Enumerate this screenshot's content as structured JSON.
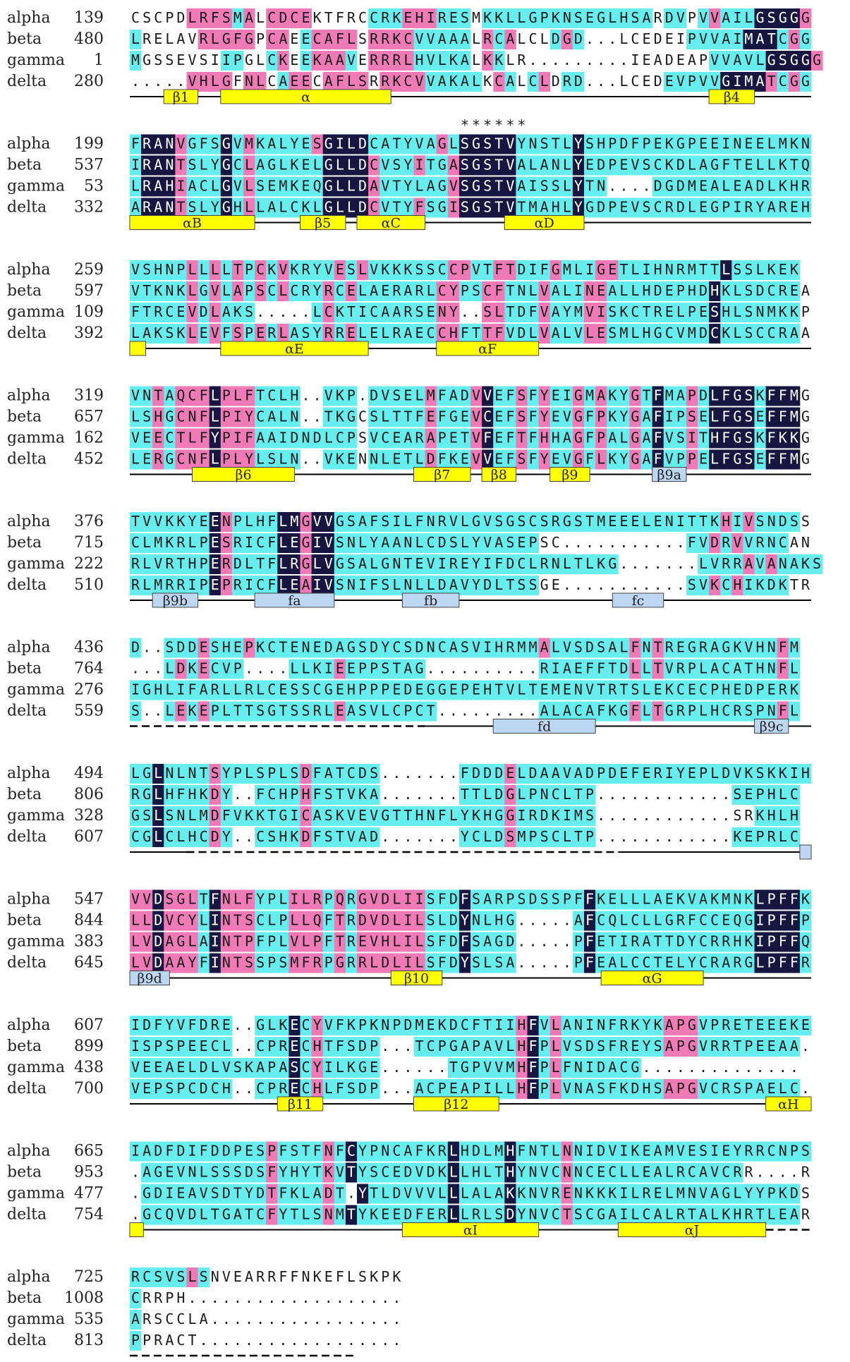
{
  "colors": {
    "dark": "#161640",
    "pink": "#f07ab5",
    "cyan": "#66eeee",
    "helix": "#ffff00",
    "strand": "#bdd6f2",
    "line": "#000000"
  },
  "sequence_names": [
    "alpha",
    "beta",
    "gamma",
    "delta"
  ],
  "blocks": [
    {
      "numbers": [
        "139",
        "480",
        "1",
        "280"
      ],
      "sequences": [
        "CSCPDLRFSMALCDCEKTFRCCRKEHIRESMKKLLGPKNSEGLHSARDVPVVAILGSGGG",
        "LRELAVRLGFGPCAEECAFLSRRKCVVAAALRCALCLDGD...LCEDEIPVVAIMATCGG",
        "MGSSEVSIIPGLCKEEKAAVERRRLHVLKALKKLR.........IEADEAPVVAVLGSGGG",
        ".....VHLGFNLCAEECAFLSRRKCVVAKALKCALCLDRD...LCEDEVPVVGIMATCGG"
      ],
      "masks": [
        "-----PPPPCP-PPPP-----CCCPPPCCC-CCCCCCCCCCCCCCC-CC-CPCCCDDDDPCPCCCC",
        "C-----PPPPP-PP-CPPPP-PPPPCCCCC-PCP---CPCCC-------CCCCCDDDCPCPCDDD",
        "C-------CC--CP-CPPPC-PPPPCCCCC-PC----C-------------CCCCCDDDDPCPCDDD",
        "-----PPPP-PP-CPP-PPPP-PPPPCCCCC-PC-CP-CC-------CCCCCDDDDPCPCCDDD"
      ],
      "markers": "",
      "features": [
        {
          "type": "coil",
          "start": 0,
          "end": 60
        },
        {
          "type": "helix",
          "start": 3,
          "end": 6,
          "label": "β1"
        },
        {
          "type": "helix",
          "start": 8,
          "end": 23,
          "label": "α"
        },
        {
          "type": "helix",
          "start": 51,
          "end": 55,
          "label": "β4"
        }
      ]
    },
    {
      "numbers": [
        "199",
        "537",
        "53",
        "332"
      ],
      "sequences": [
        "FRANVGFSGVMKALYESGILDCATYVAGLSGSTVYNSTLYSHPDFPEKGPEEINEELMKN",
        "IRANTSLYGCLAGLKELGLLDCVSYITGASGSTVALANLYEDPEVSCKDLAGFTELLKTQ",
        "LRAHIACLGVLSEMKEQGLLDAVTYLAGVSGSTVAISSLYTN....DGDMEALEADLKHR",
        "ARANTSLYGHLLALCKLGLLDCVTYFSGISGSTVTMAHLYGDPEVSCRDLEGPIRYAREH"
      ],
      "masks": [
        "CDDDPCCCDCPCCCCCPDDDDCCCCCCPCDDDDDCCCCCDCCCCCCCCCCCCCCCCCCCC",
        "CDDDPCCCDCPCCCCCCDDDDPCCCPCCPDDDDDCCCCCDCCCCCCCCCCCCCCCCCCCC",
        "CDDDPCCCDCPCCCCCCDDDDPCCCCCCPDDDDDCCCCCDCCCCCCCCCCCCCCCCCCCC",
        "CDDDPCCCDCPCCCCCCDDDDPCCCPCCPDDDDDCCCCCDCCCCCCCCCCCCCCCCCCCC"
      ],
      "markers": "                             ******",
      "features": [
        {
          "type": "coil",
          "start": 0,
          "end": 60
        },
        {
          "type": "helix",
          "start": 0,
          "end": 11,
          "label": "αB"
        },
        {
          "type": "helix",
          "start": 15,
          "end": 19,
          "label": "β5"
        },
        {
          "type": "helix",
          "start": 20,
          "end": 26,
          "label": "αC"
        },
        {
          "type": "helix",
          "start": 33,
          "end": 40,
          "label": "αD"
        }
      ]
    },
    {
      "numbers": [
        "259",
        "597",
        "109",
        "392"
      ],
      "sequences": [
        "VSHNPLLLLTPCKVKRYVESLVKKKSSCCPVTFTDIFGMLIGETLIHNRMTTLSSLKEK",
        "VTKNKLGVLAPSCLCRYRCELAERARLCYPSCFTNLVALINEALLHDEPHDHKLSDCREA",
        "FTRCEVDLAKS.....LCKTICAARSENY..SLTDFVAYMVISKCTRELPESHLSNMKKP",
        "LAKSKLEVFSPERLASYRRELELRAECCHFTTFVDLVALVLESMLHGCVMDCKLSCCRAA"
      ],
      "masks": [
        "CCCCCPCPCPCPCPCCCCPCPCCCCCCCPPCCPPCCCPCCCPPCCCCCCCCCDCCCCCC",
        "CCCCCPCPCPCPCPCCCPCPCCCCCCCPPCCPPCCCPCCCPPCCCCCCCCCDCCCCCCC",
        "CCCCCPCPCCCCCCCCCPCCCCCCCCCPPCCPPCCCPCCCPPCCCCCCCCCDCCCCCCC",
        "CCCCCPCPCPCPCPCCCPCPCCCCCCCPPCCPPCCCPCCCPPCCCCCCCCCDCCCCCCC"
      ],
      "markers": "",
      "features": [
        {
          "type": "coil",
          "start": 0,
          "end": 60
        },
        {
          "type": "helix",
          "start": 0,
          "end": 1.4
        },
        {
          "type": "helix",
          "start": 8,
          "end": 21,
          "label": "αE"
        },
        {
          "type": "helix",
          "start": 27,
          "end": 36,
          "label": "αF"
        }
      ]
    },
    {
      "numbers": [
        "319",
        "657",
        "162",
        "452"
      ],
      "sequences": [
        "VNTAQCFLPLFTCLH..VKP.DVSELMFADVVEFSFYEIGMAKYGTFMAPDLFGSKFFMG",
        "LSHGCNFLPIYCALN..TKGCSLTTFEFGEVCEFSFYEVGFPKYGAFIPSELFGSEFFMG",
        "VEECTLFYPIFAAIDNDLCPSVCEARAPETVFEFTFHHAGFPALGAFVSITHFGSKFKKG",
        "LERGCNFLPLYLSLN..VKENNLETLDFKEVVEFSFYEVGFLKYGAFVPPELFGSEFFMG"
      ],
      "masks": [
        "CCPCPPPDPPPCCCC--CCC-CCCCCPCCCPDCCPCPCCPCPCCPCDCCPCDDDDCDDD",
        "CCPCPPPDPPPCCCC--CCC-CCCCCPCCCPDCCPCPCCPCPCCPCDCCPCDDDDCDDD",
        "CCPCPPPDPPPCCCCCCCCC-CCCCCPCCCPDCCPCPCCPCPCCPCDCCPCDDDDCDDD",
        "CCPCPPPDPPPCCCC--CCC-CCCCCPCCCPDCCPCPCCPCPCCPCDCCPCDDDDCDDD"
      ],
      "markers": "",
      "features": [
        {
          "type": "coil",
          "start": 0,
          "end": 60
        },
        {
          "type": "helix",
          "start": 5.5,
          "end": 14.5,
          "label": "β6"
        },
        {
          "type": "helix",
          "start": 25,
          "end": 30,
          "label": "β7"
        },
        {
          "type": "helix",
          "start": 31,
          "end": 34,
          "label": "β8"
        },
        {
          "type": "helix",
          "start": 37,
          "end": 40.5,
          "label": "β9"
        },
        {
          "type": "strand",
          "start": 46,
          "end": 49,
          "label": "β9a"
        }
      ]
    },
    {
      "numbers": [
        "376",
        "715",
        "222",
        "510"
      ],
      "sequences": [
        "TVVKKYEENPLHFLMGVVGSAFSILFNRVLGVSGSCSRGSTMEEELENITTKHIVSNDSS",
        "CLMKRLPESRICFLEGIVSNLYAANLCDSLYVASEPSC...........FVDRVVRNCAN",
        "RLVRTHPERDLTFLRGLVGSALGNTEVIREYIFDCLRNLTLKG.......LVRRAVANAKS",
        "RLMRRIPEPRICFLEAIVSNIFSLNLLDAVYDLTSSGE...........SVKCHIKDKTR"
      ],
      "masks": [
        "CCCCCCCDPCCCCDDPDDCCCCCCCCCCCCCCCCCCCCCCCCCCCCCCCCCCPCPCCCC",
        "CCCCCCCDPCCCCDDPDDCCCCCCCCCCCCCCCCCC-----------CCCCPCPCCCC",
        "CCCCCCCDPCCCCDDPDDCCCCCCCCCCCCCCCCCCCCCCCCC-------CCCCPCPCCCC",
        "CCCCCCCDPCCCCDDPDDCCCCCCCCCCCCCCCCCC-----------CCCCPCPCCCC"
      ],
      "markers": "",
      "features": [
        {
          "type": "coil",
          "start": 0,
          "end": 60
        },
        {
          "type": "strand",
          "start": 2,
          "end": 6,
          "label": "β9b"
        },
        {
          "type": "strand",
          "start": 11,
          "end": 18,
          "label": "fa"
        },
        {
          "type": "strand",
          "start": 24,
          "end": 29,
          "label": "fb"
        },
        {
          "type": "strand",
          "start": 42.5,
          "end": 47,
          "label": "fc"
        }
      ]
    },
    {
      "numbers": [
        "436",
        "764",
        "276",
        "559"
      ],
      "sequences": [
        "D..SDDESHEPKCTENEDAGSDYCSDNCASVIHRMMALVSDSALFNTREGRAGKVHNFM",
        "...LDKECVP....LLKIEEPPSTAG..........RIAEFFTDLLTVRPLACATHNFL",
        "IGHLIFARLLRLCESSCGEHPPPEDEGGEPEHTVLTEMENVTRTSLEKCECPHEDPERK",
        "S..LEKEPLTTSGTSSRLEASVLCPCT.........ALACAFKGFLTGRPLHCRSPNFL"
      ],
      "masks": [
        "C--CCCPCCCPCCCCCCCCCCCCCCCCCCCCCCCCCPCCCCCCCPCPCCCCCCCCCCPC",
        "---CPCPCCC----CCCCPCCCCCCC----------CCCCCCCCPCPCCCCCCCCCCPC",
        "CCCCCCCCCCCCCCCCCCCCCCCCCCCCCCCCCCCCCCCCCCCCCCCCCCCCCCCCCCC",
        "C--CPCPCCCCCCCCCCCPCCCCCCCC---------CCCCCCCCPCPCCCCCCCCCCPC"
      ],
      "markers": "",
      "features": [
        {
          "type": "dash",
          "start": 0,
          "end": 26
        },
        {
          "type": "coil",
          "start": 26,
          "end": 60
        },
        {
          "type": "strand",
          "start": 32,
          "end": 41,
          "label": "fd"
        },
        {
          "type": "strand",
          "start": 55,
          "end": 58,
          "label": "β9c"
        }
      ]
    },
    {
      "numbers": [
        "494",
        "806",
        "328",
        "607"
      ],
      "sequences": [
        "LGLNLNTSYPLSPLSDFATCDS.......FDDDELDAAVADPDEFERIYEPLDVKSKKIH",
        "RGLHFHKDY..FCHPHFSTVKA.......TTLDGLPNCLTP............SEPHLC",
        "GSLSNLMDFVKKTGICASKVEVGTTHNFLYKHGGIRDKIMS............SRKHLH",
        "CGLCLHCDY..CSHKDFSTVAD.......YCLDSMPSCLTP............KEPRLC"
      ],
      "masks": [
        "CCDCCCCPCCCCCCCPCCCCCC-------CCCCPCCCCCCCCCCCCCCCCCCCCCCCCCC",
        "CCDCCCCPC--CCCCPCCCCCC-------CCCCPCCCCCCC------------CCCCCCC",
        "CCDCCCCPCCCCCCCPCCCCCCCCCCCCCCCCCPCCCCCCCCC------------CCCCCCC",
        "CCDCCCCPC--CCCCPCCCCCC-------CCCCPCCCCCCC------------CCCCCCC"
      ],
      "markers": "",
      "features": [
        {
          "type": "coil",
          "start": 0,
          "end": 5
        },
        {
          "type": "dash",
          "start": 5,
          "end": 43
        },
        {
          "type": "coil",
          "start": 43,
          "end": 59
        },
        {
          "type": "strand",
          "start": 59,
          "end": 60
        }
      ]
    },
    {
      "numbers": [
        "547",
        "844",
        "383",
        "645"
      ],
      "sequences": [
        "VVDSGLTFNLFYPLILRPQRGVDLIISFDFSARPSDSSPFFKELLLAEKVAKMNKLPFFK",
        "LLDVCYLINTSCLPLLQFTRDVDLILSLDYNLHG.....AFCQLCLLGRFCCEQGIPFFP",
        "LVDAGLAINTPFPLVLPFTREVHLILSFDFSAGD.....PFETIRATTDYCRRHKIPFFQ",
        "LVDAAYFINTSSPSMFRPGRRLDLILSFDYSLSA.....PFEALCCTELYCRARGLPFFR"
      ],
      "masks": [
        "PPDPPPCDPPPCCCPPPCPCPPPPPPCCCDCCCCCCCCCCDCCCCCCCCCCCCCCDDDDC",
        "PPDPPPCDPPPCCCPPPCPCPPPPPPCCCDCCCC-----CDCCCCCCCCCCCCCCDDDDC",
        "PPDPPPCDPPPCCCPPPCPCPPPPPPCCCDCCCC-----CDCCCCCCCCCCCCCCDDDDC",
        "PPDPPPCDPPPCCCPPPCPCPPPPPPCCCDCCCC-----CDCCCCCCCCCCCCCCDDDDC"
      ],
      "markers": "",
      "features": [
        {
          "type": "coil",
          "start": 0,
          "end": 60
        },
        {
          "type": "strand",
          "start": 0,
          "end": 3.5,
          "label": "β9d"
        },
        {
          "type": "helix",
          "start": 23,
          "end": 27.5,
          "label": "β10"
        },
        {
          "type": "helix",
          "start": 41.5,
          "end": 50.5,
          "label": "αG"
        }
      ]
    },
    {
      "numbers": [
        "607",
        "899",
        "438",
        "700"
      ],
      "sequences": [
        "IDFYVFDRE..GLKECYVFKPKNPDMEKDCFTIIHFVLANINFRKYKAPGVPRETEEEKE",
        "ISPSPEECL..CPRECHTFSDP...TCPGAPAVLHFPLVSDSFREYSAPGVRRTPEEAA.",
        "VEEAELDLVSKAPASCYILKGE......TGPVVMHFPLFNIDACG..............",
        "VEPSPCDCH..CPRECHLFSDP...ACPEAPILLHFPLVNASFKDHSAPGVCRSPAELC."
      ],
      "masks": [
        "CCCCCCCCC--CCCDCPCCCCCCCCCCCCCCCCCPDCPCCCCCCCCCPPPCCCCCCCCCC",
        "CCCCCCCCC--CCCDCPCCCCC---CCCCCCCCCPDCPCCCCCCCCCPPPCCCCCCCCC-",
        "CCCCCCCCCCCCCCDCPCCCCC------CCCCCCPDCPCCCCCCC--------------",
        "CCCCCCCCC--CCCDCPCCCCC---CCCCCCCCCPDCPCCCCCCCCCPPPCCCCCCCCC-"
      ],
      "markers": "",
      "features": [
        {
          "type": "coil",
          "start": 0,
          "end": 60
        },
        {
          "type": "helix",
          "start": 13,
          "end": 17,
          "label": "β11"
        },
        {
          "type": "helix",
          "start": 25,
          "end": 32.5,
          "label": "β12"
        },
        {
          "type": "helix",
          "start": 56,
          "end": 60,
          "label": "αH"
        }
      ]
    },
    {
      "numbers": [
        "665",
        "953",
        "477",
        "754"
      ],
      "sequences": [
        "IADFDIFDDPESPFSTFNFCYPNCAFKRLHDLMHFNTLNNIDVIKEAMVESIEYRRCNPS",
        ".AGEVNLSSSDSFYHYTKVTYSCEDVDKLLHLTHYNVCNNCECLLEALRCAVCRR....R",
        ".GDIEAVSDTYDTFKLADT.YTLDVVVLLLALAKKNVRENKKKILRELMNVAGLYYPKDS",
        ".GCQVDLTGATCFYTLSNMTYKEEDFERLLRLSDYNVCTSCGAILCALRTALKHRTLEAR"
      ],
      "masks": [
        "CCCCCCCCCCCCPCCCCPCDCCCCCCCCDCCCCDCCCCPCCCCCCCCCCCCCCCCCCCCC",
        "-CCCCCCCCCCCPCCCCPCDCCCCCCCCDCCCCDCCCCPCCCCCCCCCCCCCCC----C",
        "-CCCCCCCCCCCPCCCCPC-DCCCCCCCDCCCCDCCCCPCCCCCCCCCCCCCCCCCCCC",
        "-CCCCCCCCCCCPCCCCPCDCCCCCCCCDCCCCDCCCCPCCCCCCCCCCCCCCCCCCCC"
      ],
      "markers": "",
      "features": [
        {
          "type": "coil",
          "start": 0,
          "end": 56
        },
        {
          "type": "dash",
          "start": 56,
          "end": 60
        },
        {
          "type": "helix",
          "start": 0,
          "end": 1.2
        },
        {
          "type": "helix",
          "start": 24,
          "end": 36,
          "label": "αI"
        },
        {
          "type": "helix",
          "start": 43,
          "end": 56,
          "label": "αJ"
        }
      ]
    },
    {
      "numbers": [
        "725",
        "1008",
        "535",
        "813"
      ],
      "sequences": [
        "RCSVSLSNVEARRFFNKEFLSKPK",
        "CRRPH...................",
        "ARSCCLA.................",
        "PPRACT.................."
      ],
      "masks": [
        "CCCCCPC---------------------",
        "C------------------------",
        "C------------------------",
        "C------------------------"
      ],
      "markers": "",
      "features": [
        {
          "type": "dash",
          "start": 0,
          "end": 20
        }
      ]
    }
  ]
}
